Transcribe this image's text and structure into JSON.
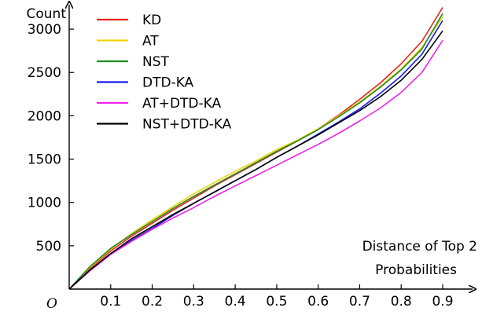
{
  "chart_data": {
    "type": "line",
    "title": "",
    "ylabel": "Count",
    "xlabel_lines": [
      "Distance of Top 2",
      "Probabilities"
    ],
    "origin_label": "O",
    "xlim": [
      0,
      0.9
    ],
    "ylim": [
      0,
      3300
    ],
    "x_ticks": [
      0.1,
      0.2,
      0.3,
      0.4,
      0.5,
      0.6,
      0.7,
      0.8,
      0.9
    ],
    "x_tick_labels": [
      "0.1",
      "0.2",
      "0.3",
      "0.4",
      "0.5",
      "0.6",
      "0.7",
      "0.8",
      "0.9"
    ],
    "y_ticks": [
      500,
      1000,
      1500,
      2000,
      2500,
      3000
    ],
    "y_tick_labels": [
      "500",
      "1000",
      "1500",
      "2000",
      "2500",
      "3000"
    ],
    "grid": false,
    "legend_position": "top-left",
    "x": [
      0,
      0.05,
      0.1,
      0.15,
      0.2,
      0.25,
      0.3,
      0.35,
      0.4,
      0.45,
      0.5,
      0.55,
      0.6,
      0.65,
      0.7,
      0.75,
      0.8,
      0.85,
      0.9
    ],
    "series": [
      {
        "name": "KD",
        "color": "#e8231f",
        "values": [
          0,
          240,
          440,
          610,
          760,
          910,
          1050,
          1190,
          1320,
          1450,
          1580,
          1710,
          1850,
          2010,
          2190,
          2380,
          2600,
          2860,
          3250
        ]
      },
      {
        "name": "AT",
        "color": "#f2d400",
        "values": [
          0,
          250,
          460,
          640,
          800,
          950,
          1100,
          1230,
          1360,
          1480,
          1610,
          1720,
          1850,
          2000,
          2160,
          2340,
          2540,
          2790,
          3140
        ]
      },
      {
        "name": "NST",
        "color": "#1f8c1f",
        "values": [
          0,
          260,
          470,
          630,
          780,
          930,
          1070,
          1200,
          1330,
          1460,
          1590,
          1710,
          1840,
          1990,
          2150,
          2330,
          2530,
          2770,
          3180
        ]
      },
      {
        "name": "DTD-KA",
        "color": "#1a1aee",
        "values": [
          0,
          220,
          410,
          560,
          700,
          850,
          990,
          1120,
          1250,
          1380,
          1520,
          1650,
          1790,
          1930,
          2080,
          2260,
          2460,
          2710,
          3100
        ]
      },
      {
        "name": "AT+DTD-KA",
        "color": "#ee22ee",
        "values": [
          0,
          210,
          400,
          550,
          690,
          820,
          940,
          1070,
          1190,
          1310,
          1430,
          1550,
          1670,
          1800,
          1940,
          2090,
          2270,
          2500,
          2870
        ]
      },
      {
        "name": "NST+DTD-KA",
        "color": "#000000",
        "values": [
          0,
          220,
          410,
          580,
          720,
          860,
          990,
          1120,
          1250,
          1380,
          1520,
          1650,
          1780,
          1920,
          2060,
          2220,
          2410,
          2650,
          2980
        ]
      }
    ]
  }
}
